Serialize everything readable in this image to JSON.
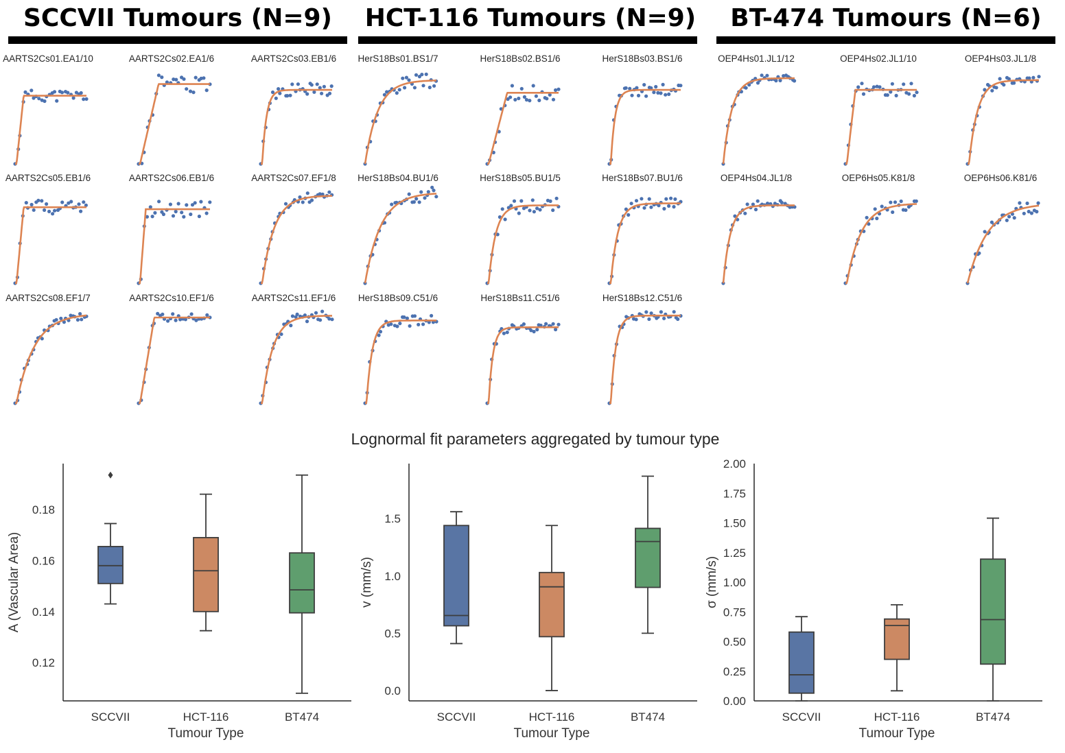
{
  "groups": [
    {
      "title": "SCCVII Tumours (N=9)"
    },
    {
      "title": "HCT-116 Tumours (N=9)"
    },
    {
      "title": "BT-474 Tumours (N=6)"
    }
  ],
  "colors": {
    "points": "#4c72b0",
    "fit": "#dd8452",
    "sccvii": "#5975a4",
    "hct116": "#cc8963",
    "bt474": "#5f9e6e",
    "box_edge": "#3d3d3d"
  },
  "chart_data": [
    {
      "type": "scatter",
      "description": "Grid of per-tumour enhancement curves: measured points (blue) with fitted curve (orange). Axes are hidden; values are normalized 0-1 on both axes.",
      "panels": [
        {
          "title": "AARTS2Cs01.EA1/10",
          "group": 0,
          "row": 0,
          "col": 0,
          "fit": {
            "kind": "sat",
            "t0": 0.02,
            "tsat": 0.12,
            "L": 0.7
          },
          "noise": 0.06,
          "n": 28,
          "seed": 11
        },
        {
          "title": "AARTS2Cs02.EA1/6",
          "group": 0,
          "row": 0,
          "col": 1,
          "fit": {
            "kind": "sat",
            "t0": 0.02,
            "tsat": 0.28,
            "L": 0.82
          },
          "noise": 0.09,
          "n": 26,
          "seed": 12
        },
        {
          "title": "AARTS2Cs03.EB1/6",
          "group": 0,
          "row": 0,
          "col": 2,
          "fit": {
            "kind": "exp",
            "t0": 0.02,
            "k": 0.06,
            "L": 0.76
          },
          "noise": 0.07,
          "n": 30,
          "seed": 13
        },
        {
          "title": "HerS18Bs01.BS1/7",
          "group": 1,
          "row": 0,
          "col": 0,
          "fit": {
            "kind": "exp",
            "t0": 0.0,
            "k": 0.18,
            "L": 0.86
          },
          "noise": 0.07,
          "n": 30,
          "seed": 14
        },
        {
          "title": "HerS18Bs02.BS1/6",
          "group": 1,
          "row": 0,
          "col": 1,
          "fit": {
            "kind": "sat",
            "t0": 0.02,
            "tsat": 0.28,
            "L": 0.73
          },
          "noise": 0.08,
          "n": 26,
          "seed": 15
        },
        {
          "title": "HerS18Bs03.BS1/6",
          "group": 1,
          "row": 0,
          "col": 2,
          "fit": {
            "kind": "exp",
            "t0": 0.02,
            "k": 0.06,
            "L": 0.76
          },
          "noise": 0.07,
          "n": 30,
          "seed": 16
        },
        {
          "title": "OEP4Hs01.JL1/12",
          "group": 2,
          "row": 0,
          "col": 0,
          "fit": {
            "kind": "exp",
            "t0": 0.0,
            "k": 0.12,
            "L": 0.88
          },
          "noise": 0.04,
          "n": 32,
          "seed": 17
        },
        {
          "title": "OEP4Hs02.JL1/10",
          "group": 2,
          "row": 0,
          "col": 1,
          "fit": {
            "kind": "sat",
            "t0": 0.02,
            "tsat": 0.14,
            "L": 0.76
          },
          "noise": 0.07,
          "n": 28,
          "seed": 18
        },
        {
          "title": "OEP4Hs03.JL1/8",
          "group": 2,
          "row": 0,
          "col": 2,
          "fit": {
            "kind": "exp",
            "t0": 0.02,
            "k": 0.12,
            "L": 0.86
          },
          "noise": 0.05,
          "n": 30,
          "seed": 19
        },
        {
          "title": "AARTS2Cs05.EB1/6",
          "group": 0,
          "row": 1,
          "col": 0,
          "fit": {
            "kind": "sat",
            "t0": 0.02,
            "tsat": 0.12,
            "L": 0.78
          },
          "noise": 0.07,
          "n": 28,
          "seed": 21
        },
        {
          "title": "AARTS2Cs06.EB1/6",
          "group": 0,
          "row": 1,
          "col": 1,
          "fit": {
            "kind": "sat",
            "t0": 0.02,
            "tsat": 0.1,
            "L": 0.76
          },
          "noise": 0.08,
          "n": 26,
          "seed": 22
        },
        {
          "title": "AARTS2Cs07.EF1/8",
          "group": 0,
          "row": 1,
          "col": 2,
          "fit": {
            "kind": "exp",
            "t0": 0.02,
            "k": 0.17,
            "L": 0.9
          },
          "noise": 0.05,
          "n": 30,
          "seed": 23
        },
        {
          "title": "HerS18Bs04.BU1/6",
          "group": 1,
          "row": 1,
          "col": 0,
          "fit": {
            "kind": "exp",
            "t0": 0.0,
            "k": 0.22,
            "L": 0.93
          },
          "noise": 0.07,
          "n": 30,
          "seed": 24
        },
        {
          "title": "HerS18Bs05.BU1/5",
          "group": 1,
          "row": 1,
          "col": 1,
          "fit": {
            "kind": "exp",
            "t0": 0.02,
            "k": 0.1,
            "L": 0.8
          },
          "noise": 0.08,
          "n": 28,
          "seed": 25
        },
        {
          "title": "HerS18Bs07.BU1/6",
          "group": 1,
          "row": 1,
          "col": 2,
          "fit": {
            "kind": "exp",
            "t0": 0.02,
            "k": 0.1,
            "L": 0.82
          },
          "noise": 0.06,
          "n": 30,
          "seed": 26
        },
        {
          "title": "OEP4Hs04.JL1/8",
          "group": 2,
          "row": 1,
          "col": 0,
          "fit": {
            "kind": "exp",
            "t0": 0.0,
            "k": 0.1,
            "L": 0.8
          },
          "noise": 0.05,
          "n": 30,
          "seed": 27
        },
        {
          "title": "OEP6Hs05.K81/8",
          "group": 2,
          "row": 1,
          "col": 1,
          "fit": {
            "kind": "exp",
            "t0": 0.02,
            "k": 0.2,
            "L": 0.82
          },
          "noise": 0.06,
          "n": 28,
          "seed": 28
        },
        {
          "title": "OEP6Hs06.K81/6",
          "group": 2,
          "row": 1,
          "col": 2,
          "fit": {
            "kind": "exp",
            "t0": 0.0,
            "k": 0.28,
            "L": 0.82
          },
          "noise": 0.07,
          "n": 30,
          "seed": 29
        },
        {
          "title": "AARTS2Cs08.EF1/7",
          "group": 0,
          "row": 2,
          "col": 0,
          "fit": {
            "kind": "exp",
            "t0": 0.02,
            "k": 0.25,
            "L": 0.92
          },
          "noise": 0.04,
          "n": 32,
          "seed": 31
        },
        {
          "title": "AARTS2Cs10.EF1/6",
          "group": 0,
          "row": 2,
          "col": 1,
          "fit": {
            "kind": "sat",
            "t0": 0.02,
            "tsat": 0.22,
            "L": 0.88
          },
          "noise": 0.04,
          "n": 28,
          "seed": 32
        },
        {
          "title": "AARTS2Cs11.EF1/6",
          "group": 0,
          "row": 2,
          "col": 2,
          "fit": {
            "kind": "exp",
            "t0": 0.02,
            "k": 0.15,
            "L": 0.9
          },
          "noise": 0.05,
          "n": 32,
          "seed": 33
        },
        {
          "title": "HerS18Bs09.C51/6",
          "group": 1,
          "row": 2,
          "col": 0,
          "fit": {
            "kind": "exp",
            "t0": 0.02,
            "k": 0.08,
            "L": 0.85
          },
          "noise": 0.06,
          "n": 28,
          "seed": 34
        },
        {
          "title": "HerS18Bs11.C51/6",
          "group": 1,
          "row": 2,
          "col": 1,
          "fit": {
            "kind": "exp",
            "t0": 0.02,
            "k": 0.06,
            "L": 0.78
          },
          "noise": 0.05,
          "n": 30,
          "seed": 35
        },
        {
          "title": "HerS18Bs12.C51/6",
          "group": 1,
          "row": 2,
          "col": 2,
          "fit": {
            "kind": "exp",
            "t0": 0.02,
            "k": 0.07,
            "L": 0.9
          },
          "noise": 0.05,
          "n": 30,
          "seed": 36
        }
      ]
    },
    {
      "type": "box",
      "suptitle": "Lognormal fit parameters aggregated by tumour type",
      "xlabel": "Tumour Type",
      "categories": [
        "SCCVII",
        "HCT-116",
        "BT474"
      ],
      "plots": [
        {
          "ylabel": "A (Vascular Area)",
          "ylim": [
            0.105,
            0.198
          ],
          "yticks": [
            0.12,
            0.14,
            0.16,
            0.18
          ],
          "tick_labels": [
            "0.12",
            "0.14",
            "0.16",
            "0.18"
          ],
          "boxes": [
            {
              "whislo": 0.143,
              "q1": 0.151,
              "med": 0.158,
              "q3": 0.1655,
              "whishi": 0.1745,
              "fliers": [
                0.1935
              ]
            },
            {
              "whislo": 0.1325,
              "q1": 0.14,
              "med": 0.156,
              "q3": 0.169,
              "whishi": 0.186,
              "fliers": []
            },
            {
              "whislo": 0.108,
              "q1": 0.1395,
              "med": 0.1485,
              "q3": 0.163,
              "whishi": 0.1935,
              "fliers": []
            }
          ]
        },
        {
          "ylabel": "v (mm/s)",
          "ylim": [
            -0.09,
            1.98
          ],
          "yticks": [
            0.0,
            0.5,
            1.0,
            1.5
          ],
          "tick_labels": [
            "0.0",
            "0.5",
            "1.0",
            "1.5"
          ],
          "boxes": [
            {
              "whislo": 0.41,
              "q1": 0.565,
              "med": 0.655,
              "q3": 1.44,
              "whishi": 1.56,
              "fliers": []
            },
            {
              "whislo": 0.0,
              "q1": 0.47,
              "med": 0.905,
              "q3": 1.03,
              "whishi": 1.44,
              "fliers": []
            },
            {
              "whislo": 0.5,
              "q1": 0.9,
              "med": 1.3,
              "q3": 1.415,
              "whishi": 1.87,
              "fliers": []
            }
          ]
        },
        {
          "ylabel": "σ (mm/s)",
          "ylim": [
            0.0,
            2.0
          ],
          "yticks": [
            0.0,
            0.25,
            0.5,
            0.75,
            1.0,
            1.25,
            1.5,
            1.75,
            2.0
          ],
          "tick_labels": [
            "0.00",
            "0.25",
            "0.50",
            "0.75",
            "1.00",
            "1.25",
            "1.50",
            "1.75",
            "2.00"
          ],
          "boxes": [
            {
              "whislo": 0.0,
              "q1": 0.065,
              "med": 0.22,
              "q3": 0.58,
              "whishi": 0.71,
              "fliers": []
            },
            {
              "whislo": 0.085,
              "q1": 0.35,
              "med": 0.635,
              "q3": 0.69,
              "whishi": 0.81,
              "fliers": []
            },
            {
              "whislo": 0.0,
              "q1": 0.31,
              "med": 0.685,
              "q3": 1.195,
              "whishi": 1.54,
              "fliers": []
            }
          ]
        }
      ]
    }
  ]
}
